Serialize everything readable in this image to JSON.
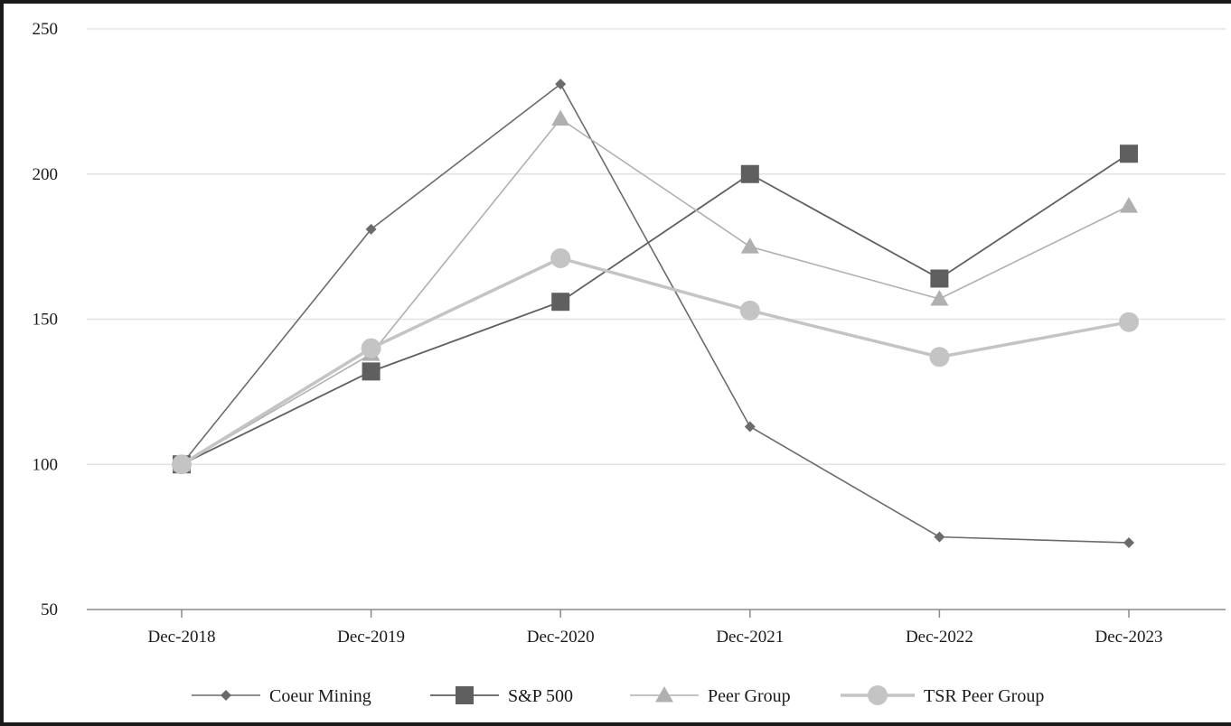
{
  "chart_data": {
    "type": "line",
    "title": "",
    "xlabel": "",
    "ylabel": "",
    "categories": [
      "Dec-2018",
      "Dec-2019",
      "Dec-2020",
      "Dec-2021",
      "Dec-2022",
      "Dec-2023"
    ],
    "ylim": [
      50,
      250
    ],
    "yticks": [
      50,
      100,
      150,
      200,
      250
    ],
    "grid": true,
    "legend_position": "bottom",
    "series": [
      {
        "name": "Coeur Mining",
        "marker": "diamond",
        "color": "#6b6b6b",
        "values": [
          100,
          181,
          231,
          113,
          75,
          73
        ]
      },
      {
        "name": "S&P 500",
        "marker": "square",
        "color": "#5f5f5f",
        "values": [
          100,
          132,
          156,
          200,
          164,
          207
        ]
      },
      {
        "name": "Peer Group",
        "marker": "triangle",
        "color": "#b0b0b0",
        "values": [
          100,
          138,
          219,
          175,
          157,
          189
        ]
      },
      {
        "name": "TSR Peer Group",
        "marker": "circle",
        "color": "#c4c4c4",
        "values": [
          100,
          140,
          171,
          153,
          137,
          149
        ]
      }
    ]
  }
}
